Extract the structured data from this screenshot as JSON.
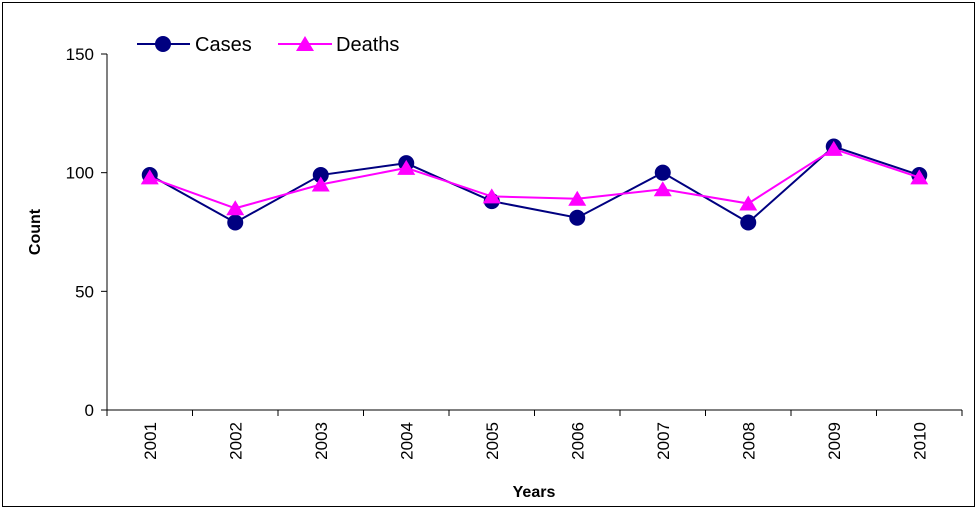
{
  "chart_data": {
    "type": "line",
    "categories": [
      "2001",
      "2002",
      "2003",
      "2004",
      "2005",
      "2006",
      "2007",
      "2008",
      "2009",
      "2010"
    ],
    "series": [
      {
        "name": "Cases",
        "values": [
          99,
          79,
          99,
          104,
          88,
          81,
          100,
          79,
          111,
          99
        ],
        "color": "#000080",
        "marker": "circle"
      },
      {
        "name": "Deaths",
        "values": [
          98,
          85,
          95,
          102,
          90,
          89,
          93,
          87,
          110,
          98
        ],
        "color": "#FF00FF",
        "marker": "triangle"
      }
    ],
    "title": "",
    "xlabel": "Years",
    "ylabel": "Count",
    "ylim": [
      0,
      150
    ],
    "yticks": [
      "0",
      "50",
      "100",
      "150"
    ],
    "grid": false,
    "legend_position": "top-left"
  }
}
